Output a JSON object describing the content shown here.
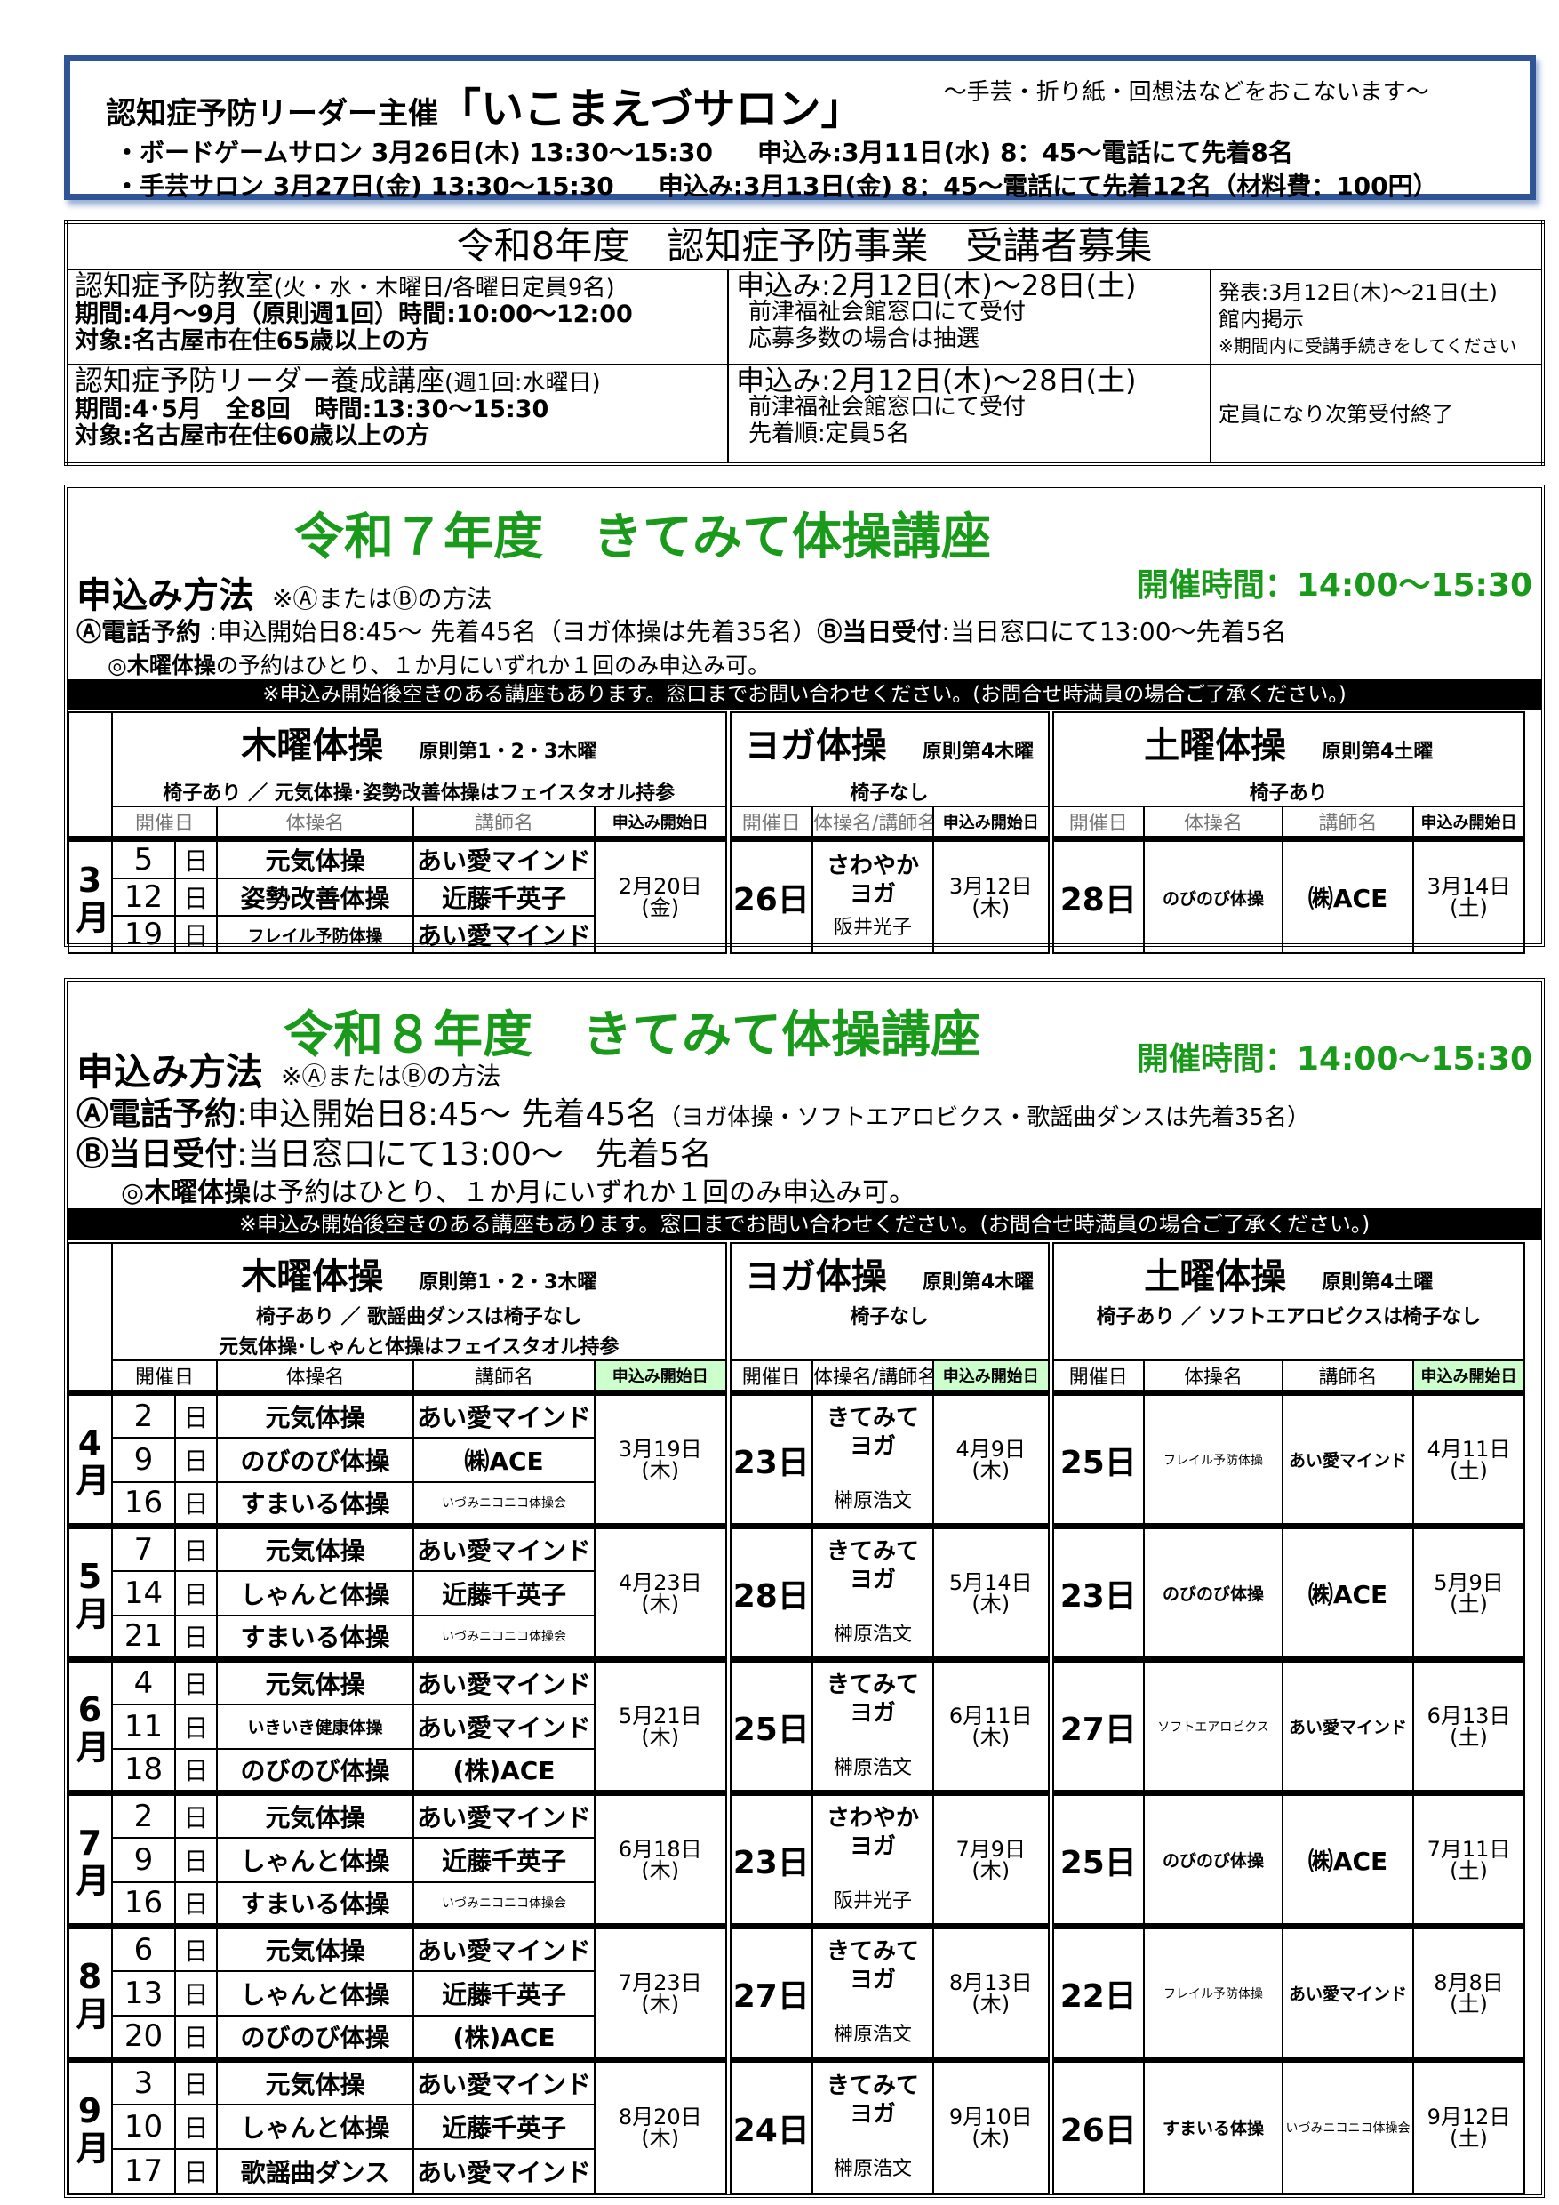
{
  "salon": {
    "title_prefix": "認知症予防リーダー主催",
    "title_name": "「いこまえづサロン」",
    "subtitle": "～手芸・折り紙・回想法などをおこないます～",
    "lines": [
      {
        "event": "・ボードゲームサロン 3月26日(木) 13:30～15:30",
        "apply": "申込み:3月11日(水) 8：45～電話にて先着8名"
      },
      {
        "event": "・手芸サロン 3月27日(金) 13:30～15:30",
        "apply": "申込み:3月13日(金) 8：45～電話にて先着12名（材料費：100円）"
      }
    ]
  },
  "recruit": {
    "title": "令和8年度　認知症予防事業　受講者募集",
    "rows": [
      {
        "name": "認知症予防教室",
        "name_note": "(火・水・木曜日/各曜日定員9名)",
        "period": "期間:4月～9月（原則週1回）時間:10:00～12:00",
        "target": "対象:名古屋市在住65歳以上の方",
        "apply": "申込み:2月12日(木)～28日(土)",
        "apply2": "前津福祉会館窓口にて受付",
        "apply3": "応募多数の場合は抽選",
        "result": "発表:3月12日(木)～21日(土)",
        "result2": "館内掲示",
        "result3": "※期間内に受講手続きをしてください"
      },
      {
        "name": "認知症予防リーダー養成講座",
        "name_note": "(週1回:水曜日)",
        "period": "期間:4･5月　全8回　時間:13:30～15:30",
        "target": "対象:名古屋市在住60歳以上の方",
        "apply": "申込み:2月12日(木)～28日(土)",
        "apply2": "前津福祉会館窓口にて受付",
        "apply3": "先着順:定員5名",
        "result": "定員になり次第受付終了",
        "result2": "",
        "result3": ""
      }
    ]
  },
  "s3": {
    "title": "令和７年度　きてみて体操講座",
    "time": "開催時間：14:00～15:30",
    "method": "申込み方法",
    "method_note": "※ⒶまたはⒷの方法",
    "line_a_label": "Ⓐ電話予約",
    "line_a": " :申込開始日8:45～ 先着45名（ヨガ体操は先着35名）",
    "line_b_label": "Ⓑ当日受付",
    "line_b": ":当日窓口にて13:00～先着5名",
    "note_label": "◎木曜体操",
    "note": "の予約はひとり、１か月にいずれか１回のみ申込み可。",
    "bar": "※申込み開始後空きのある講座もあります。窓口までお問い合わせください。(お問合せ時満員の場合ご了承ください。)",
    "groups": {
      "thu": {
        "name": "木曜体操",
        "rule": "原則第1・2・3木曜",
        "notes": [
          "椅子あり ／ 元気体操･姿勢改善体操はフェイスタオル持参"
        ]
      },
      "yoga": {
        "name": "ヨガ体操",
        "rule": "原則第4木曜",
        "notes": [
          "椅子なし"
        ]
      },
      "sat": {
        "name": "土曜体操",
        "rule": "原則第4土曜",
        "notes": [
          "椅子あり"
        ]
      }
    },
    "cols": [
      "開催日",
      "体操名",
      "講師名",
      "申込み開始日",
      "開催日",
      "体操名/講師名",
      "申込み開始日",
      "開催日",
      "体操名",
      "講師名",
      "申込み開始日"
    ],
    "months": [
      {
        "month": "3月",
        "rows": [
          {
            "num": "5",
            "day": "日",
            "name": "元気体操",
            "teacher": "あい愛マインド"
          },
          {
            "num": "12",
            "day": "日",
            "name": "姿勢改善体操",
            "teacher": "近藤千英子"
          },
          {
            "num": "19",
            "day": "日",
            "name": "フレイル予防体操",
            "teacher": "あい愛マインド"
          }
        ],
        "start": "2月20日",
        "start_wd": "(金)",
        "yoga": {
          "date": "26日",
          "name1": "さわやか",
          "name2": "ヨガ",
          "teacher": "阪井光子",
          "start": "3月12日",
          "start_wd": "(木)"
        },
        "sat": {
          "date": "28日",
          "name": "のびのび体操",
          "teacher": "㈱ACE",
          "start": "3月14日",
          "start_wd": "(土)"
        }
      }
    ]
  },
  "s4": {
    "title": "令和８年度　きてみて体操講座",
    "time": "開催時間：14:00～15:30",
    "method": "申込み方法",
    "method_note": "※ⒶまたはⒷの方法",
    "line_a_label": "Ⓐ電話予約",
    "line_a": ":申込開始日8:45～ 先着45名",
    "line_a_note": "（ヨガ体操・ソフトエアロビクス・歌謡曲ダンスは先着35名）",
    "line_b_label": "Ⓑ当日受付",
    "line_b": ":当日窓口にて13:00～　先着5名",
    "note_label": "◎木曜体操",
    "note": "は予約はひとり、１か月にいずれか１回のみ申込み可。",
    "bar": "※申込み開始後空きのある講座もあります。窓口までお問い合わせください。(お問合せ時満員の場合ご了承ください。)",
    "groups": {
      "thu": {
        "name": "木曜体操",
        "rule": "原則第1・2・3木曜",
        "notes": [
          "椅子あり ／ 歌謡曲ダンスは椅子なし",
          "元気体操･しゃんと体操はフェイスタオル持参"
        ]
      },
      "yoga": {
        "name": "ヨガ体操",
        "rule": "原則第4木曜",
        "notes": [
          "椅子なし"
        ]
      },
      "sat": {
        "name": "土曜体操",
        "rule": "原則第4土曜",
        "notes": [
          "椅子あり ／ ソフトエアロビクスは椅子なし"
        ]
      }
    },
    "cols": [
      "開催日",
      "体操名",
      "講師名",
      "申込み開始日",
      "開催日",
      "体操名/講師名",
      "申込み開始日",
      "開催日",
      "体操名",
      "講師名",
      "申込み開始日"
    ],
    "start_col_color": "#ccffcc",
    "months": [
      {
        "month": "4月",
        "rows": [
          {
            "num": "2",
            "day": "日",
            "name": "元気体操",
            "teacher": "あい愛マインド"
          },
          {
            "num": "9",
            "day": "日",
            "name": "のびのび体操",
            "teacher": "㈱ACE"
          },
          {
            "num": "16",
            "day": "日",
            "name": "すまいる体操",
            "teacher": "いづみニコニコ体操会"
          }
        ],
        "start": "3月19日",
        "start_wd": "(木)",
        "yoga": {
          "date": "23日",
          "name1": "きてみて",
          "name2": "ヨガ",
          "teacher": "榊原浩文",
          "start": "4月9日",
          "start_wd": "(木)"
        },
        "sat": {
          "date": "25日",
          "name": "フレイル予防体操",
          "teacher": "あい愛マインド",
          "start": "4月11日",
          "start_wd": "(土)"
        }
      },
      {
        "month": "5月",
        "rows": [
          {
            "num": "7",
            "day": "日",
            "name": "元気体操",
            "teacher": "あい愛マインド"
          },
          {
            "num": "14",
            "day": "日",
            "name": "しゃんと体操",
            "teacher": "近藤千英子"
          },
          {
            "num": "21",
            "day": "日",
            "name": "すまいる体操",
            "teacher": "いづみニコニコ体操会"
          }
        ],
        "start": "4月23日",
        "start_wd": "(木)",
        "yoga": {
          "date": "28日",
          "name1": "きてみて",
          "name2": "ヨガ",
          "teacher": "榊原浩文",
          "start": "5月14日",
          "start_wd": "(木)"
        },
        "sat": {
          "date": "23日",
          "name": "のびのび体操",
          "teacher": "㈱ACE",
          "start": "5月9日",
          "start_wd": "(土)"
        }
      },
      {
        "month": "6月",
        "rows": [
          {
            "num": "4",
            "day": "日",
            "name": "元気体操",
            "teacher": "あい愛マインド"
          },
          {
            "num": "11",
            "day": "日",
            "name": "いきいき健康体操",
            "teacher": "あい愛マインド"
          },
          {
            "num": "18",
            "day": "日",
            "name": "のびのび体操",
            "teacher": "(株)ACE"
          }
        ],
        "start": "5月21日",
        "start_wd": "(木)",
        "yoga": {
          "date": "25日",
          "name1": "きてみて",
          "name2": "ヨガ",
          "teacher": "榊原浩文",
          "start": "6月11日",
          "start_wd": "(木)"
        },
        "sat": {
          "date": "27日",
          "name": "ソフトエアロビクス",
          "teacher": "あい愛マインド",
          "start": "6月13日",
          "start_wd": "(土)"
        }
      },
      {
        "month": "7月",
        "rows": [
          {
            "num": "2",
            "day": "日",
            "name": "元気体操",
            "teacher": "あい愛マインド"
          },
          {
            "num": "9",
            "day": "日",
            "name": "しゃんと体操",
            "teacher": "近藤千英子"
          },
          {
            "num": "16",
            "day": "日",
            "name": "すまいる体操",
            "teacher": "いづみニコニコ体操会"
          }
        ],
        "start": "6月18日",
        "start_wd": "(木)",
        "yoga": {
          "date": "23日",
          "name1": "さわやか",
          "name2": "ヨガ",
          "teacher": "阪井光子",
          "start": "7月9日",
          "start_wd": "(木)"
        },
        "sat": {
          "date": "25日",
          "name": "のびのび体操",
          "teacher": "㈱ACE",
          "start": "7月11日",
          "start_wd": "(土)"
        }
      },
      {
        "month": "8月",
        "rows": [
          {
            "num": "6",
            "day": "日",
            "name": "元気体操",
            "teacher": "あい愛マインド"
          },
          {
            "num": "13",
            "day": "日",
            "name": "しゃんと体操",
            "teacher": "近藤千英子"
          },
          {
            "num": "20",
            "day": "日",
            "name": "のびのび体操",
            "teacher": "(株)ACE"
          }
        ],
        "start": "7月23日",
        "start_wd": "(木)",
        "yoga": {
          "date": "27日",
          "name1": "きてみて",
          "name2": "ヨガ",
          "teacher": "榊原浩文",
          "start": "8月13日",
          "start_wd": "(木)"
        },
        "sat": {
          "date": "22日",
          "name": "フレイル予防体操",
          "teacher": "あい愛マインド",
          "start": "8月8日",
          "start_wd": "(土)"
        }
      },
      {
        "month": "9月",
        "rows": [
          {
            "num": "3",
            "day": "日",
            "name": "元気体操",
            "teacher": "あい愛マインド"
          },
          {
            "num": "10",
            "day": "日",
            "name": "しゃんと体操",
            "teacher": "近藤千英子"
          },
          {
            "num": "17",
            "day": "日",
            "name": "歌謡曲ダンス",
            "teacher": "あい愛マインド"
          }
        ],
        "start": "8月20日",
        "start_wd": "(木)",
        "yoga": {
          "date": "24日",
          "name1": "きてみて",
          "name2": "ヨガ",
          "teacher": "榊原浩文",
          "start": "9月10日",
          "start_wd": "(木)"
        },
        "sat": {
          "date": "26日",
          "name": "すまいる体操",
          "teacher": "いづみニコニコ体操会",
          "start": "9月12日",
          "start_wd": "(土)"
        }
      }
    ]
  }
}
